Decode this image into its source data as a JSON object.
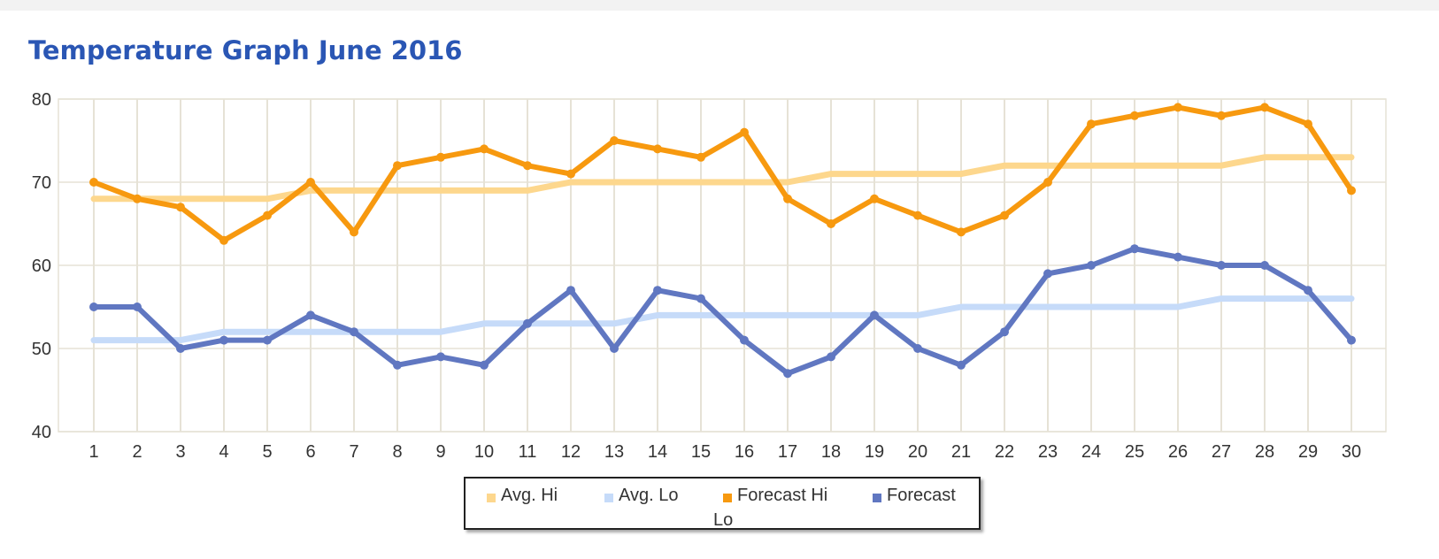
{
  "chart_data": {
    "type": "line",
    "title": "Temperature Graph June 2016",
    "xlabel": "",
    "ylabel": "",
    "x": [
      1,
      2,
      3,
      4,
      5,
      6,
      7,
      8,
      9,
      10,
      11,
      12,
      13,
      14,
      15,
      16,
      17,
      18,
      19,
      20,
      21,
      22,
      23,
      24,
      25,
      26,
      27,
      28,
      29,
      30
    ],
    "ylim": [
      40,
      80
    ],
    "yticks": [
      40,
      50,
      60,
      70,
      80
    ],
    "grid": true,
    "legend_position": "bottom",
    "series": [
      {
        "name": "Avg. Hi",
        "color": "#fdd78d",
        "markers": false,
        "values": [
          68,
          68,
          68,
          68,
          68,
          69,
          69,
          69,
          69,
          69,
          69,
          70,
          70,
          70,
          70,
          70,
          70,
          71,
          71,
          71,
          71,
          72,
          72,
          72,
          72,
          72,
          72,
          73,
          73,
          73
        ]
      },
      {
        "name": "Avg. Lo",
        "color": "#c6dbf9",
        "markers": false,
        "values": [
          51,
          51,
          51,
          52,
          52,
          52,
          52,
          52,
          52,
          53,
          53,
          53,
          53,
          54,
          54,
          54,
          54,
          54,
          54,
          54,
          55,
          55,
          55,
          55,
          55,
          55,
          56,
          56,
          56,
          56
        ]
      },
      {
        "name": "Forecast Hi",
        "color": "#f7990f",
        "markers": true,
        "values": [
          70,
          68,
          67,
          63,
          66,
          70,
          64,
          72,
          73,
          74,
          72,
          71,
          75,
          74,
          73,
          76,
          68,
          65,
          68,
          66,
          64,
          66,
          70,
          77,
          78,
          79,
          78,
          79,
          77,
          69
        ]
      },
      {
        "name": "Forecast Lo",
        "color": "#6077c1",
        "markers": true,
        "values": [
          55,
          55,
          50,
          51,
          51,
          54,
          52,
          48,
          49,
          48,
          53,
          57,
          50,
          57,
          56,
          51,
          47,
          49,
          54,
          50,
          48,
          52,
          59,
          60,
          62,
          61,
          60,
          60,
          57,
          51
        ]
      }
    ]
  },
  "colors": {
    "title": "#2a56b4",
    "grid": "#e6e2d6",
    "axis_text": "#333333"
  },
  "legend": {
    "item_1": "Avg. Hi",
    "item_2": "Avg. Lo",
    "item_3": "Forecast Hi",
    "item_4": "Forecast",
    "item_4_wrap": "Lo"
  }
}
